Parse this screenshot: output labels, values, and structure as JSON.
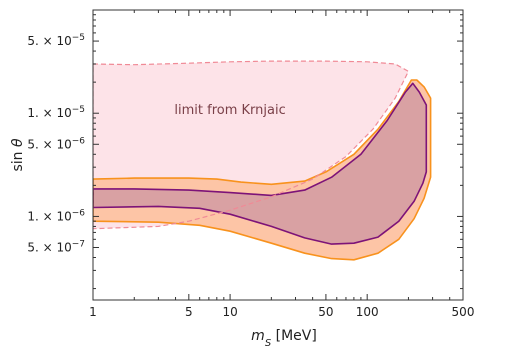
{
  "chart_data": {
    "type": "area",
    "xlabel": {
      "main": "m",
      "sub": "S",
      "unit": " [MeV]"
    },
    "ylabel": {
      "main": "sin ",
      "greek": "θ"
    },
    "x_scale": "log",
    "y_scale": "log",
    "xlim": [
      1,
      500
    ],
    "ylim": [
      1.55e-07,
      0.0001
    ],
    "grid": false,
    "x_ticks": [
      {
        "value": 1,
        "label": "1"
      },
      {
        "value": 5,
        "label": "5"
      },
      {
        "value": 10,
        "label": "10"
      },
      {
        "value": 50,
        "label": "50"
      },
      {
        "value": 100,
        "label": "100"
      },
      {
        "value": 500,
        "label": "500"
      }
    ],
    "y_ticks": [
      {
        "value": 5e-05,
        "mant": "5. × 10",
        "exp": "−5"
      },
      {
        "value": 1e-05,
        "mant": "1. × 10",
        "exp": "−5"
      },
      {
        "value": 5e-06,
        "mant": "5. × 10",
        "exp": "−6"
      },
      {
        "value": 1e-06,
        "mant": "1. × 10",
        "exp": "−6"
      },
      {
        "value": 5e-07,
        "mant": "5. × 10",
        "exp": "−7"
      }
    ],
    "annotation": {
      "text": "limit from Krnjaic",
      "x": 10,
      "y": 9.8e-06
    },
    "colors": {
      "krnjaic_fill": "#fde3e8",
      "krnjaic_line": "#f08a96",
      "orange_fill": "#fdc5a6",
      "orange_line": "#f8921d",
      "purple_fill": "#d9a1a3",
      "purple_line": "#7d1378",
      "annotation": "#7a4048"
    },
    "series": [
      {
        "style": "region-dashed",
        "upper": [
          [
            1,
            3e-05
          ],
          [
            2,
            2.95e-05
          ],
          [
            5,
            3.05e-05
          ],
          [
            10,
            3.15e-05
          ],
          [
            20,
            3.2e-05
          ],
          [
            50,
            3.2e-05
          ],
          [
            100,
            3.15e-05
          ],
          [
            160,
            3e-05
          ],
          [
            200,
            2.55e-05
          ]
        ],
        "lower": [
          [
            1,
            7.6e-07
          ],
          [
            3,
            8e-07
          ],
          [
            5,
            9e-07
          ],
          [
            10,
            1.15e-06
          ],
          [
            20,
            1.55e-06
          ],
          [
            40,
            2.3e-06
          ],
          [
            70,
            3.8e-06
          ],
          [
            110,
            7e-06
          ],
          [
            160,
            1.4e-05
          ],
          [
            200,
            2.55e-05
          ]
        ]
      },
      {
        "style": "band-orange",
        "upper": [
          [
            1,
            2.3e-06
          ],
          [
            2,
            2.35e-06
          ],
          [
            5,
            2.35e-06
          ],
          [
            8,
            2.3e-06
          ],
          [
            12,
            2.15e-06
          ],
          [
            20,
            2.05e-06
          ],
          [
            35,
            2.2e-06
          ],
          [
            50,
            2.7e-06
          ],
          [
            80,
            4e-06
          ],
          [
            120,
            7e-06
          ],
          [
            170,
            1.3e-05
          ],
          [
            210,
            2.1e-05
          ],
          [
            230,
            2.1e-05
          ],
          [
            260,
            1.8e-05
          ],
          [
            290,
            1.4e-05
          ]
        ],
        "lower": [
          [
            1,
            9e-07
          ],
          [
            3,
            8.8e-07
          ],
          [
            6,
            8.2e-07
          ],
          [
            10,
            7.2e-07
          ],
          [
            20,
            5.5e-07
          ],
          [
            35,
            4.4e-07
          ],
          [
            55,
            3.9e-07
          ],
          [
            80,
            3.8e-07
          ],
          [
            120,
            4.4e-07
          ],
          [
            170,
            6e-07
          ],
          [
            220,
            9.5e-07
          ],
          [
            260,
            1.5e-06
          ],
          [
            290,
            2.4e-06
          ]
        ]
      },
      {
        "style": "band-purple",
        "upper": [
          [
            1,
            1.85e-06
          ],
          [
            2,
            1.85e-06
          ],
          [
            5,
            1.8e-06
          ],
          [
            10,
            1.7e-06
          ],
          [
            20,
            1.6e-06
          ],
          [
            35,
            1.8e-06
          ],
          [
            55,
            2.4e-06
          ],
          [
            90,
            4e-06
          ],
          [
            140,
            8.5e-06
          ],
          [
            190,
            1.6e-05
          ],
          [
            215,
            1.95e-05
          ],
          [
            240,
            1.6e-05
          ],
          [
            270,
            1.2e-05
          ]
        ],
        "lower": [
          [
            1,
            1.22e-06
          ],
          [
            3,
            1.25e-06
          ],
          [
            6,
            1.2e-06
          ],
          [
            10,
            1.05e-06
          ],
          [
            20,
            8e-07
          ],
          [
            35,
            6.2e-07
          ],
          [
            55,
            5.4e-07
          ],
          [
            80,
            5.5e-07
          ],
          [
            120,
            6.3e-07
          ],
          [
            170,
            9e-07
          ],
          [
            220,
            1.4e-06
          ],
          [
            255,
            2.1e-06
          ],
          [
            270,
            2.7e-06
          ]
        ]
      }
    ]
  }
}
